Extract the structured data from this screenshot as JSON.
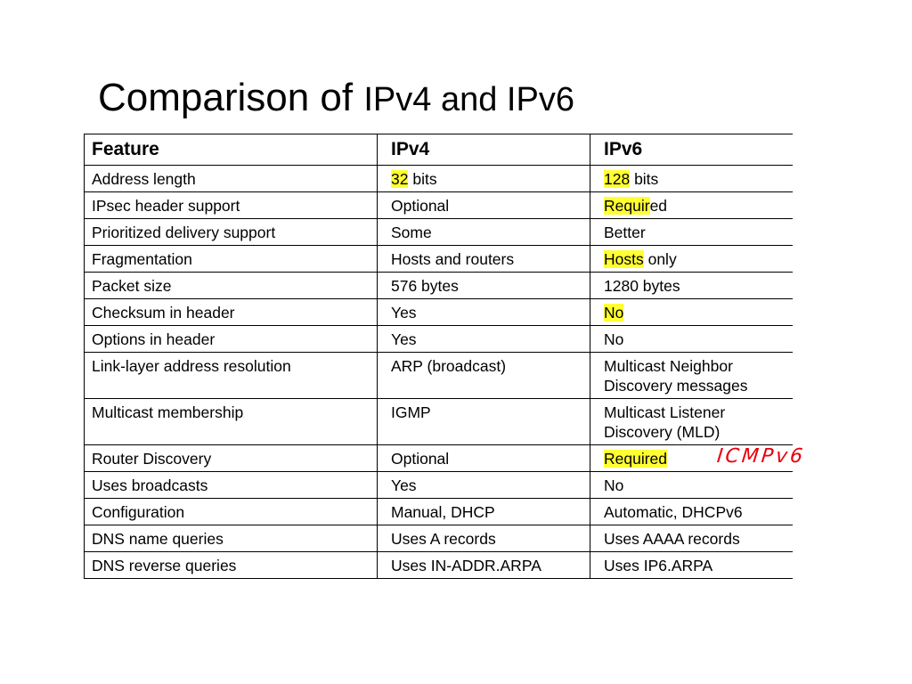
{
  "title": {
    "part1": "Comparison of ",
    "part2": "IPv4 and IPv6"
  },
  "table": {
    "headers": [
      "Feature",
      "IPv4",
      "IPv6"
    ],
    "rows": [
      {
        "feature": "Address length",
        "ipv4": {
          "hl": "32",
          "rest": " bits"
        },
        "ipv6": {
          "hl": "128",
          "rest": " bits"
        }
      },
      {
        "feature": "IPsec header support",
        "ipv4": {
          "hl": "",
          "rest": "Optional"
        },
        "ipv6": {
          "hl": "Requir",
          "rest": "ed"
        }
      },
      {
        "feature": "Prioritized delivery support",
        "ipv4": {
          "hl": "",
          "rest": "Some"
        },
        "ipv6": {
          "hl": "",
          "rest": "Better"
        }
      },
      {
        "feature": "Fragmentation",
        "ipv4": {
          "hl": "",
          "rest": "Hosts and routers"
        },
        "ipv6": {
          "hl": "Hosts",
          "rest": " only"
        }
      },
      {
        "feature": "Packet size",
        "ipv4": {
          "hl": "",
          "rest": "576 bytes"
        },
        "ipv6": {
          "hl": "",
          "rest": "1280 bytes"
        }
      },
      {
        "feature": "Checksum in header",
        "ipv4": {
          "hl": "",
          "rest": "Yes"
        },
        "ipv6": {
          "hl": "No",
          "rest": ""
        }
      },
      {
        "feature": "Options in header",
        "ipv4": {
          "hl": "",
          "rest": "Yes"
        },
        "ipv6": {
          "hl": "",
          "rest": "No"
        }
      },
      {
        "feature": "Link-layer address resolution",
        "ipv4": {
          "hl": "",
          "rest": "ARP (broadcast)"
        },
        "ipv6": {
          "hl": "",
          "rest": "Multicast Neighbor\nDiscovery messages"
        }
      },
      {
        "feature": "Multicast membership",
        "ipv4": {
          "hl": "",
          "rest": "IGMP"
        },
        "ipv6": {
          "hl": "",
          "rest": "Multicast Listener\nDiscovery (MLD)"
        }
      },
      {
        "feature": "Router Discovery",
        "ipv4": {
          "hl": "",
          "rest": "Optional"
        },
        "ipv6": {
          "hl": "Required",
          "rest": ""
        }
      },
      {
        "feature": "Uses broadcasts",
        "ipv4": {
          "hl": "",
          "rest": "Yes"
        },
        "ipv6": {
          "hl": "",
          "rest": "No"
        }
      },
      {
        "feature": "Configuration",
        "ipv4": {
          "hl": "",
          "rest": "Manual, DHCP"
        },
        "ipv6": {
          "hl": "",
          "rest": "Automatic, DHCPv6"
        }
      },
      {
        "feature": "DNS name queries",
        "ipv4": {
          "hl": "",
          "rest": "Uses A records"
        },
        "ipv6": {
          "hl": "",
          "rest": "Uses AAAA records"
        }
      },
      {
        "feature": "DNS reverse queries",
        "ipv4": {
          "hl": "",
          "rest": "Uses IN-ADDR.ARPA"
        },
        "ipv6": {
          "hl": "",
          "rest": "Uses IP6.ARPA"
        }
      }
    ]
  },
  "annotation": "ICMPv6",
  "colors": {
    "highlight": "#ffff33",
    "annotation_ink": "#e8000b"
  }
}
